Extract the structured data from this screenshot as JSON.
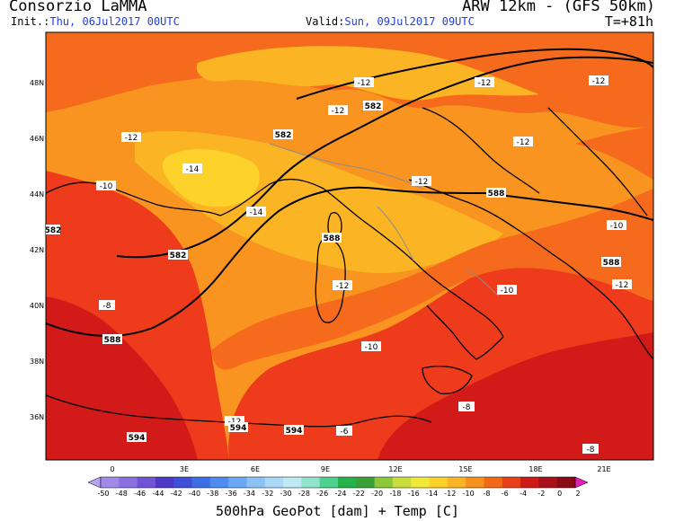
{
  "header": {
    "title": "Consorzio LaMMA",
    "model": "ARW 12km - (GFS 50km)",
    "init_label": "Init.:",
    "init_value": "Thu, 06Jul2017 00UTC",
    "valid_label": "Valid:",
    "valid_value": "Sun, 09Jul2017 09UTC",
    "lead_time": "T=+81h"
  },
  "lat_labels": [
    "48N",
    "46N",
    "44N",
    "42N",
    "40N",
    "38N",
    "36N"
  ],
  "lon_labels": [
    "0",
    "3E",
    "6E",
    "9E",
    "12E",
    "15E",
    "18E",
    "21E"
  ],
  "temp_contour_labels": [
    "-12",
    "-12",
    "-12",
    "-12",
    "-12",
    "-14",
    "-10",
    "-14",
    "-12",
    "-12",
    "-10",
    "-12",
    "-10",
    "-8",
    "-8",
    "-6",
    "-8",
    "-12",
    "-12",
    "-10"
  ],
  "geopot_contour_labels": [
    "582",
    "582",
    "582",
    "582",
    "588",
    "588",
    "588",
    "588",
    "594",
    "594",
    "594"
  ],
  "colorbar": {
    "ticks": [
      "-50",
      "-48",
      "-46",
      "-44",
      "-42",
      "-40",
      "-38",
      "-36",
      "-34",
      "-32",
      "-30",
      "-28",
      "-26",
      "-24",
      "-22",
      "-20",
      "-18",
      "-16",
      "-14",
      "-12",
      "-10",
      "-8",
      "-6",
      "-4",
      "-2",
      "0",
      "2"
    ],
    "colors": [
      "#b7a4f0",
      "#a08ae8",
      "#8a70e0",
      "#6f55d6",
      "#4d38c7",
      "#3f4fd6",
      "#3d6ee6",
      "#4e8cf0",
      "#6aa8f4",
      "#8cc2f6",
      "#aad8f7",
      "#bfe8f5",
      "#8fe3c8",
      "#4fd08e",
      "#26b24a",
      "#3aa03a",
      "#8cc83a",
      "#c9de3c",
      "#f2e83a",
      "#fcd228",
      "#fbb524",
      "#f7911e",
      "#f26a17",
      "#e8401a",
      "#cf1a18",
      "#a8101a",
      "#8a0a16",
      "#7a0612",
      "#b80f7a",
      "#e21fb8"
    ],
    "unit_label": "500hPa GeoPot [dam] + Temp [C]"
  },
  "colors": {
    "dark_red": "#d21a19",
    "red": "#ee3b1c",
    "orange_red": "#f56a1c",
    "orange": "#f8941f",
    "light_orange": "#fbb423",
    "yellow": "#fdd22b",
    "header_blue": "#1f3fe0"
  }
}
